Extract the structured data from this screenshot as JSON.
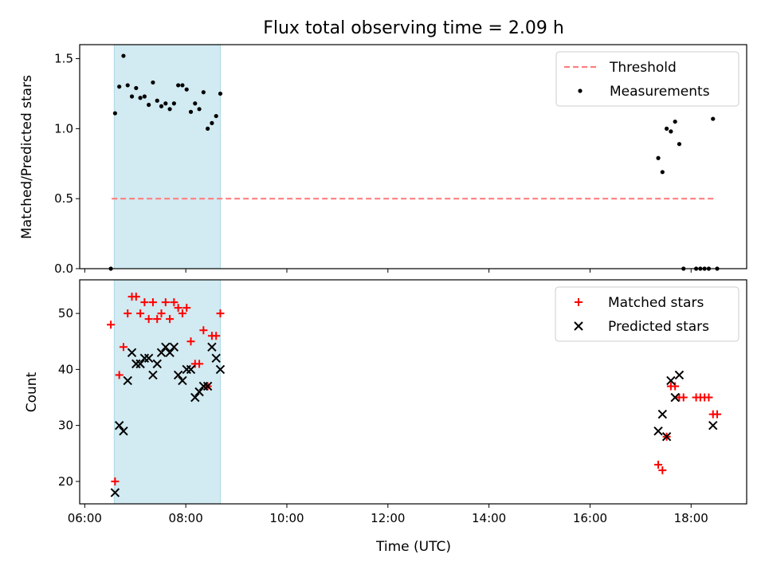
{
  "figure": {
    "title": "Flux total observing time = 2.09 h",
    "xlabel": "Time (UTC)"
  },
  "chart_data": [
    {
      "panel": "top",
      "type": "scatter",
      "ylabel": "Matched/Predicted stars",
      "xlim": [
        "05:54",
        "19:06"
      ],
      "ylim": [
        0,
        1.6
      ],
      "x_ticks": [
        "06:00",
        "08:00",
        "10:00",
        "12:00",
        "14:00",
        "16:00",
        "18:00"
      ],
      "y_ticks": [
        "0.0",
        "0.5",
        "1.0",
        "1.5"
      ],
      "y_tick_values": [
        0,
        0.5,
        1.0,
        1.5
      ],
      "shaded_span": {
        "from": "06:35",
        "to": "08:41",
        "color": "#add8e6"
      },
      "legend": {
        "position": "top-right"
      },
      "series": [
        {
          "name": "Threshold",
          "kind": "dashed-line",
          "color": "#ff7f7f",
          "points": [
            [
              "06:32",
              0.5
            ],
            [
              "18:27",
              0.5
            ]
          ]
        },
        {
          "name": "Measurements",
          "kind": "dots",
          "color": "#000000",
          "points": [
            [
              "06:31",
              0.0
            ],
            [
              "06:36",
              1.11
            ],
            [
              "06:41",
              1.3
            ],
            [
              "06:46",
              1.52
            ],
            [
              "06:51",
              1.31
            ],
            [
              "06:56",
              1.23
            ],
            [
              "07:01",
              1.29
            ],
            [
              "07:06",
              1.22
            ],
            [
              "07:11",
              1.23
            ],
            [
              "07:16",
              1.17
            ],
            [
              "07:21",
              1.33
            ],
            [
              "07:26",
              1.2
            ],
            [
              "07:31",
              1.16
            ],
            [
              "07:36",
              1.18
            ],
            [
              "07:41",
              1.14
            ],
            [
              "07:46",
              1.18
            ],
            [
              "07:51",
              1.31
            ],
            [
              "07:56",
              1.31
            ],
            [
              "08:01",
              1.28
            ],
            [
              "08:06",
              1.12
            ],
            [
              "08:11",
              1.18
            ],
            [
              "08:16",
              1.14
            ],
            [
              "08:21",
              1.26
            ],
            [
              "08:26",
              1.0
            ],
            [
              "08:31",
              1.04
            ],
            [
              "08:36",
              1.09
            ],
            [
              "08:41",
              1.25
            ],
            [
              "17:21",
              0.79
            ],
            [
              "17:26",
              0.69
            ],
            [
              "17:31",
              1.0
            ],
            [
              "17:36",
              0.98
            ],
            [
              "17:41",
              1.05
            ],
            [
              "17:46",
              0.89
            ],
            [
              "17:51",
              0.0
            ],
            [
              "18:06",
              0.0
            ],
            [
              "18:11",
              0.0
            ],
            [
              "18:16",
              0.0
            ],
            [
              "18:21",
              0.0
            ],
            [
              "18:26",
              1.07
            ],
            [
              "18:31",
              0.0
            ]
          ]
        }
      ]
    },
    {
      "panel": "bottom",
      "type": "scatter",
      "ylabel": "Count",
      "xlim": [
        "05:54",
        "19:06"
      ],
      "ylim": [
        16,
        56
      ],
      "x_ticks": [
        "06:00",
        "08:00",
        "10:00",
        "12:00",
        "14:00",
        "16:00",
        "18:00"
      ],
      "y_ticks": [
        "20",
        "30",
        "40",
        "50"
      ],
      "y_tick_values": [
        20,
        30,
        40,
        50
      ],
      "shaded_span": {
        "from": "06:35",
        "to": "08:41",
        "color": "#add8e6"
      },
      "legend": {
        "position": "top-right"
      },
      "series": [
        {
          "name": "Matched stars",
          "kind": "plus",
          "color": "#ff0000",
          "points": [
            [
              "06:31",
              48
            ],
            [
              "06:36",
              20
            ],
            [
              "06:41",
              39
            ],
            [
              "06:46",
              44
            ],
            [
              "06:51",
              50
            ],
            [
              "06:56",
              53
            ],
            [
              "07:01",
              53
            ],
            [
              "07:06",
              50
            ],
            [
              "07:11",
              52
            ],
            [
              "07:16",
              49
            ],
            [
              "07:21",
              52
            ],
            [
              "07:26",
              49
            ],
            [
              "07:31",
              50
            ],
            [
              "07:36",
              52
            ],
            [
              "07:41",
              49
            ],
            [
              "07:46",
              52
            ],
            [
              "07:51",
              51
            ],
            [
              "07:56",
              50
            ],
            [
              "08:01",
              51
            ],
            [
              "08:06",
              45
            ],
            [
              "08:11",
              41
            ],
            [
              "08:16",
              41
            ],
            [
              "08:21",
              47
            ],
            [
              "08:26",
              37
            ],
            [
              "08:31",
              46
            ],
            [
              "08:36",
              46
            ],
            [
              "08:41",
              50
            ],
            [
              "17:21",
              23
            ],
            [
              "17:26",
              22
            ],
            [
              "17:31",
              28
            ],
            [
              "17:36",
              37
            ],
            [
              "17:41",
              37
            ],
            [
              "17:46",
              35
            ],
            [
              "17:51",
              35
            ],
            [
              "18:06",
              35
            ],
            [
              "18:11",
              35
            ],
            [
              "18:16",
              35
            ],
            [
              "18:21",
              35
            ],
            [
              "18:26",
              32
            ],
            [
              "18:31",
              32
            ]
          ]
        },
        {
          "name": "Predicted stars",
          "kind": "x",
          "color": "#000000",
          "points": [
            [
              "06:36",
              18
            ],
            [
              "06:41",
              30
            ],
            [
              "06:46",
              29
            ],
            [
              "06:51",
              38
            ],
            [
              "06:56",
              43
            ],
            [
              "07:01",
              41
            ],
            [
              "07:06",
              41
            ],
            [
              "07:11",
              42
            ],
            [
              "07:16",
              42
            ],
            [
              "07:21",
              39
            ],
            [
              "07:26",
              41
            ],
            [
              "07:31",
              43
            ],
            [
              "07:36",
              44
            ],
            [
              "07:41",
              43
            ],
            [
              "07:46",
              44
            ],
            [
              "07:51",
              39
            ],
            [
              "07:56",
              38
            ],
            [
              "08:01",
              40
            ],
            [
              "08:06",
              40
            ],
            [
              "08:11",
              35
            ],
            [
              "08:16",
              36
            ],
            [
              "08:21",
              37
            ],
            [
              "08:26",
              37
            ],
            [
              "08:31",
              44
            ],
            [
              "08:36",
              42
            ],
            [
              "08:41",
              40
            ],
            [
              "17:21",
              29
            ],
            [
              "17:26",
              32
            ],
            [
              "17:31",
              28
            ],
            [
              "17:36",
              38
            ],
            [
              "17:41",
              35
            ],
            [
              "17:46",
              39
            ],
            [
              "18:26",
              30
            ]
          ]
        }
      ]
    }
  ]
}
